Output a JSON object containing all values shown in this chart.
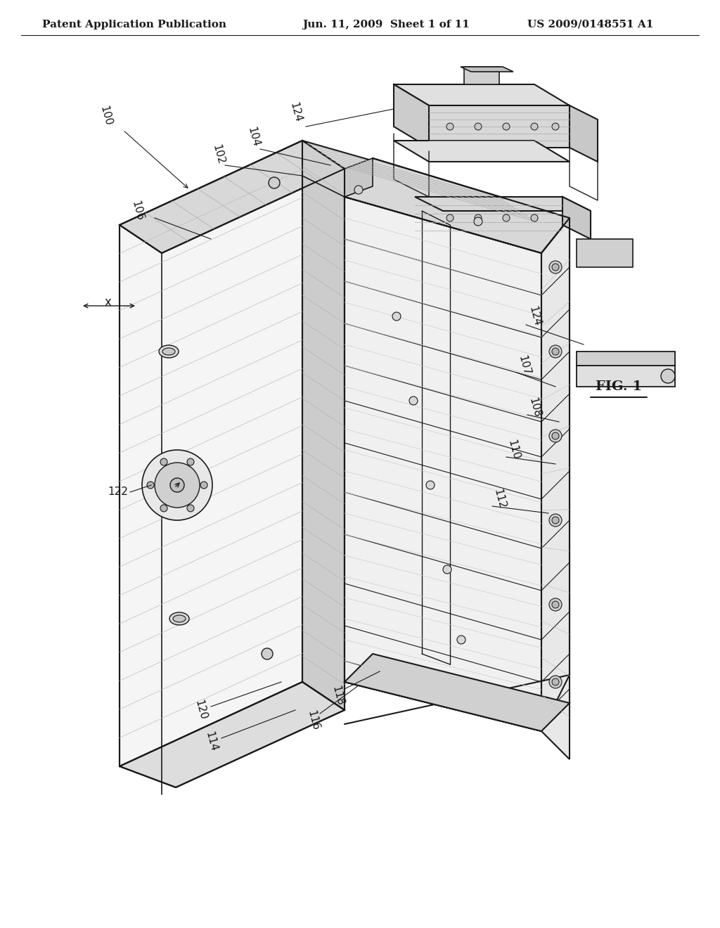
{
  "background_color": "#ffffff",
  "header_left": "Patent Application Publication",
  "header_center": "Jun. 11, 2009  Sheet 1 of 11",
  "header_right": "US 2009/0148551 A1",
  "figure_label": "FIG. 1",
  "ref_numbers": [
    "100",
    "102",
    "104",
    "106",
    "107",
    "108",
    "110",
    "112",
    "114",
    "116",
    "118",
    "120",
    "122",
    "124"
  ],
  "x_arrow_label": "x",
  "line_color": "#1a1a1a",
  "text_color": "#1a1a1a",
  "header_fontsize": 11,
  "label_fontsize": 11,
  "fig_label_fontsize": 14
}
